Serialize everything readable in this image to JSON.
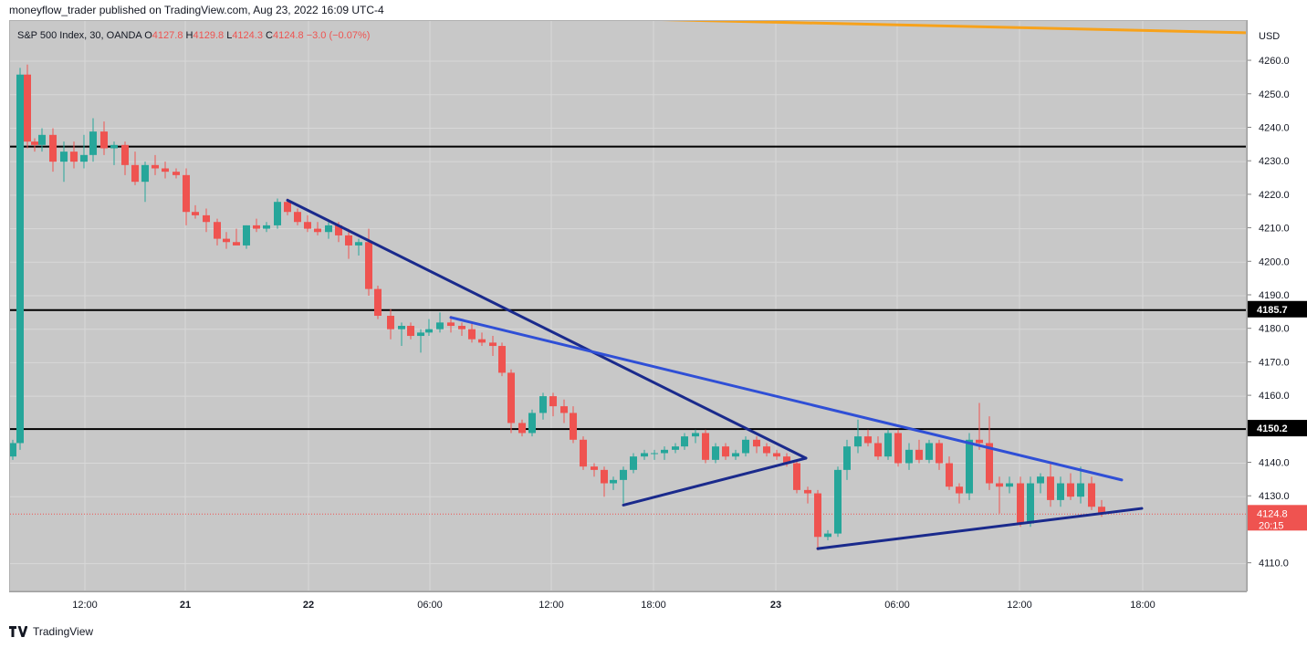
{
  "header": {
    "publisher_line": "moneyflow_trader published on TradingView.com, Aug 23, 2022 16:09 UTC-4"
  },
  "legend": {
    "symbol": "S&P 500 Index, 30, OANDA",
    "open_label": "O",
    "open_value": "4127.8",
    "high_label": "H",
    "high_value": "4129.8",
    "low_label": "L",
    "low_value": "4124.3",
    "close_label": "C",
    "close_value": "4124.8",
    "change": "−3.0 (−0.07%)"
  },
  "currency": "USD",
  "footer": {
    "brand": "TradingView"
  },
  "colors": {
    "up": "#26a69a",
    "down": "#ef5350",
    "background": "#c8c8c8",
    "grid": "#d8d8d8",
    "trend_dark": "#1a2a8c",
    "trend_light": "#2f4fd6",
    "orange": "#f7a21b",
    "level": "#000000"
  },
  "chart_data": {
    "type": "candlestick",
    "symbol": "S&P 500 Index",
    "interval": "30",
    "source": "OANDA",
    "ylim": [
      4102,
      4272
    ],
    "y_ticks": [
      "4110.0",
      "4130.0",
      "4140.0",
      "4150.0",
      "4160.0",
      "4170.0",
      "4180.0",
      "4190.0",
      "4200.0",
      "4210.0",
      "4220.0",
      "4230.0",
      "4240.0",
      "4250.0",
      "4260.0"
    ],
    "x_ticks": [
      {
        "label": "12:00",
        "x": 93
      },
      {
        "label": "21",
        "x": 203
      },
      {
        "label": "22",
        "x": 338
      },
      {
        "label": "06:00",
        "x": 471
      },
      {
        "label": "12:00",
        "x": 604
      },
      {
        "label": "18:00",
        "x": 716
      },
      {
        "label": "23",
        "x": 850
      },
      {
        "label": "06:00",
        "x": 983
      },
      {
        "label": "12:00",
        "x": 1117
      },
      {
        "label": "18:00",
        "x": 1252
      }
    ],
    "horizontal_levels": [
      {
        "value": 4234.5,
        "label": ""
      },
      {
        "value": 4185.7,
        "label": "4185.7"
      },
      {
        "value": 4150.2,
        "label": "4150.2"
      }
    ],
    "last_price": {
      "value": 4124.8,
      "label": "4124.8",
      "countdown": "20:15"
    },
    "trend_lines": [
      {
        "color": "trend_dark",
        "points": [
          [
            315,
            4218.5
          ],
          [
            883,
            4141.5
          ]
        ]
      },
      {
        "color": "trend_dark",
        "points": [
          [
            683,
            4127.5
          ],
          [
            883,
            4141.5
          ]
        ]
      },
      {
        "color": "trend_light",
        "points": [
          [
            494,
            4183.5
          ],
          [
            1229,
            4135.0
          ]
        ]
      },
      {
        "color": "trend_dark",
        "points": [
          [
            896,
            4114.5
          ],
          [
            1251,
            4126.5
          ]
        ]
      },
      {
        "color": "orange",
        "points": [
          [
            300,
            4275.0
          ],
          [
            1366,
            4268.5
          ]
        ]
      }
    ],
    "candles": [
      [
        14,
        4142,
        4147,
        4141,
        4146
      ],
      [
        22,
        4146,
        4258,
        4144,
        4256
      ],
      [
        30,
        4256,
        4259,
        4234,
        4236
      ],
      [
        38,
        4236,
        4237,
        4233,
        4235
      ],
      [
        46,
        4235,
        4240,
        4233,
        4238
      ],
      [
        58,
        4238,
        4240,
        4227,
        4230
      ],
      [
        70,
        4230,
        4236,
        4224,
        4233
      ],
      [
        81,
        4233,
        4236,
        4228,
        4230
      ],
      [
        92,
        4230,
        4238,
        4228,
        4232
      ],
      [
        102,
        4232,
        4243,
        4230,
        4239
      ],
      [
        114,
        4239,
        4242,
        4232,
        4234
      ],
      [
        125,
        4234,
        4236,
        4229,
        4235
      ],
      [
        137,
        4235,
        4236,
        4226,
        4229
      ],
      [
        148,
        4229,
        4233,
        4223,
        4224
      ],
      [
        159,
        4224,
        4230,
        4218,
        4229
      ],
      [
        170,
        4229,
        4232,
        4226,
        4228
      ],
      [
        181,
        4228,
        4230,
        4225,
        4227
      ],
      [
        193,
        4227,
        4228,
        4225,
        4226
      ],
      [
        204,
        4226,
        4228,
        4211,
        4215
      ],
      [
        214,
        4215,
        4217,
        4213,
        4214
      ],
      [
        226,
        4214,
        4216,
        4209,
        4212
      ],
      [
        238,
        4212,
        4213,
        4205,
        4207
      ],
      [
        248,
        4207,
        4209,
        4204,
        4206
      ],
      [
        259,
        4206,
        4210,
        4205,
        4205
      ],
      [
        270,
        4205,
        4211,
        4204,
        4211
      ],
      [
        281,
        4211,
        4213,
        4209,
        4210
      ],
      [
        292,
        4210,
        4212,
        4209,
        4211
      ],
      [
        304,
        4211,
        4219,
        4210,
        4218
      ],
      [
        315,
        4218,
        4219,
        4214,
        4215
      ],
      [
        326,
        4215,
        4216,
        4211,
        4212
      ],
      [
        337,
        4212,
        4214,
        4209,
        4210
      ],
      [
        348,
        4210,
        4212,
        4208,
        4209
      ],
      [
        360,
        4209,
        4212,
        4207,
        4211
      ],
      [
        371,
        4211,
        4212,
        4206,
        4208
      ],
      [
        382,
        4208,
        4210,
        4201,
        4205
      ],
      [
        393,
        4205,
        4207,
        4202,
        4206
      ],
      [
        404,
        4206,
        4210,
        4190,
        4192
      ],
      [
        414,
        4192,
        4193,
        4183,
        4184
      ],
      [
        428,
        4184,
        4186,
        4177,
        4180
      ],
      [
        440,
        4180,
        4182,
        4175,
        4181
      ],
      [
        450,
        4181,
        4182,
        4177,
        4178
      ],
      [
        461,
        4178,
        4180,
        4173,
        4179
      ],
      [
        470,
        4179,
        4183,
        4178,
        4180
      ],
      [
        482,
        4180,
        4185,
        4179,
        4182
      ],
      [
        494,
        4182,
        4184,
        4179,
        4181
      ],
      [
        506,
        4181,
        4182,
        4178,
        4180
      ],
      [
        517,
        4180,
        4182,
        4176,
        4177
      ],
      [
        528,
        4177,
        4179,
        4175,
        4176
      ],
      [
        540,
        4176,
        4178,
        4172,
        4175
      ],
      [
        550,
        4175,
        4176,
        4166,
        4167
      ],
      [
        560,
        4167,
        4168,
        4149,
        4152
      ],
      [
        572,
        4152,
        4153,
        4148,
        4149
      ],
      [
        583,
        4149,
        4156,
        4148,
        4155
      ],
      [
        595,
        4155,
        4161,
        4153,
        4160
      ],
      [
        606,
        4160,
        4161,
        4154,
        4157
      ],
      [
        618,
        4157,
        4159,
        4152,
        4155
      ],
      [
        628,
        4155,
        4157,
        4146,
        4147
      ],
      [
        639,
        4147,
        4148,
        4138,
        4139
      ],
      [
        651,
        4139,
        4140,
        4136,
        4138
      ],
      [
        662,
        4138,
        4139,
        4130,
        4134
      ],
      [
        672,
        4134,
        4136,
        4132,
        4135
      ],
      [
        683,
        4135,
        4139,
        4128,
        4138
      ],
      [
        694,
        4138,
        4143,
        4137,
        4142
      ],
      [
        706,
        4142,
        4144,
        4141,
        4143
      ],
      [
        717,
        4143,
        4144,
        4141,
        4143
      ],
      [
        728,
        4143,
        4145,
        4141,
        4144
      ],
      [
        740,
        4144,
        4146,
        4143,
        4145
      ],
      [
        750,
        4145,
        4149,
        4144,
        4148
      ],
      [
        762,
        4148,
        4150,
        4146,
        4149
      ],
      [
        773,
        4149,
        4150,
        4140,
        4141
      ],
      [
        784,
        4141,
        4146,
        4140,
        4145
      ],
      [
        795,
        4145,
        4146,
        4141,
        4142
      ],
      [
        806,
        4142,
        4144,
        4141,
        4143
      ],
      [
        817,
        4143,
        4148,
        4142,
        4147
      ],
      [
        829,
        4147,
        4148,
        4143,
        4145
      ],
      [
        840,
        4145,
        4146,
        4142,
        4143
      ],
      [
        851,
        4143,
        4144,
        4141,
        4142
      ],
      [
        862,
        4142,
        4143,
        4139,
        4140
      ],
      [
        873,
        4140,
        4141,
        4131,
        4132
      ],
      [
        885,
        4132,
        4133,
        4128,
        4131
      ],
      [
        896,
        4131,
        4132,
        4114,
        4118
      ],
      [
        907,
        4118,
        4120,
        4117,
        4119
      ],
      [
        918,
        4119,
        4139,
        4118,
        4138
      ],
      [
        928,
        4138,
        4147,
        4135,
        4145
      ],
      [
        940,
        4145,
        4153,
        4143,
        4148
      ],
      [
        951,
        4148,
        4150,
        4145,
        4146
      ],
      [
        962,
        4146,
        4148,
        4141,
        4142
      ],
      [
        973,
        4142,
        4150,
        4141,
        4149
      ],
      [
        984,
        4149,
        4150,
        4139,
        4140
      ],
      [
        996,
        4140,
        4146,
        4138,
        4144
      ],
      [
        1007,
        4144,
        4147,
        4140,
        4141
      ],
      [
        1018,
        4141,
        4147,
        4140,
        4146
      ],
      [
        1029,
        4146,
        4147,
        4138,
        4140
      ],
      [
        1040,
        4140,
        4142,
        4132,
        4133
      ],
      [
        1051,
        4133,
        4134,
        4128,
        4131
      ],
      [
        1062,
        4131,
        4149,
        4129,
        4147
      ],
      [
        1073,
        4147,
        4158,
        4144,
        4146
      ],
      [
        1084,
        4146,
        4154,
        4132,
        4134
      ],
      [
        1095,
        4134,
        4136,
        4125,
        4133
      ],
      [
        1106,
        4133,
        4136,
        4131,
        4134
      ],
      [
        1118,
        4134,
        4136,
        4121,
        4122
      ],
      [
        1129,
        4122,
        4136,
        4121,
        4134
      ],
      [
        1140,
        4134,
        4137,
        4131,
        4136
      ],
      [
        1151,
        4136,
        4140,
        4127,
        4129
      ],
      [
        1162,
        4129,
        4136,
        4127,
        4134
      ],
      [
        1173,
        4134,
        4137,
        4129,
        4130
      ],
      [
        1184,
        4130,
        4139,
        4128,
        4134
      ],
      [
        1196,
        4134,
        4136,
        4126,
        4127
      ],
      [
        1207,
        4127,
        4129,
        4124,
        4125
      ]
    ]
  }
}
